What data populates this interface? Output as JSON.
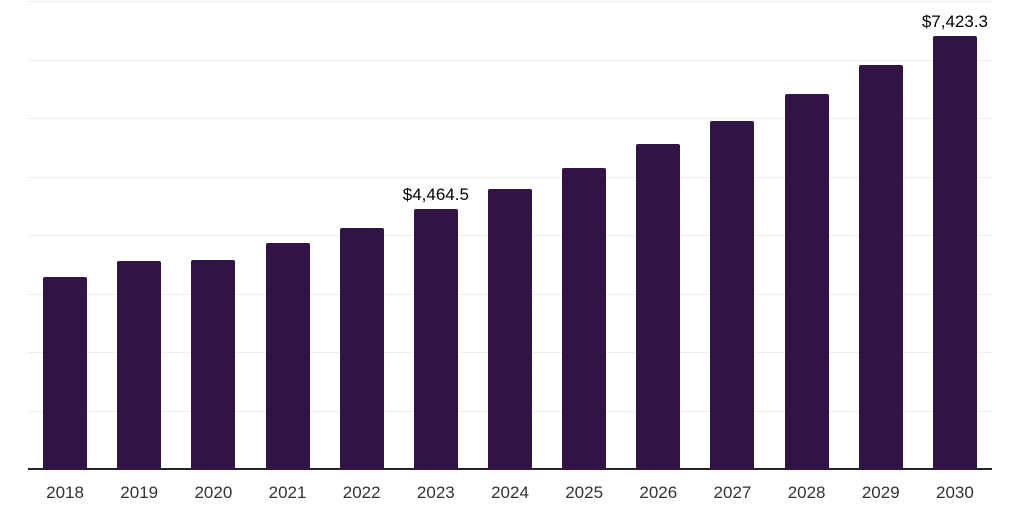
{
  "chart_data": {
    "type": "bar",
    "title": "",
    "xlabel": "",
    "ylabel": "",
    "categories": [
      "2018",
      "2019",
      "2020",
      "2021",
      "2022",
      "2023",
      "2024",
      "2025",
      "2026",
      "2027",
      "2028",
      "2029",
      "2030"
    ],
    "values": [
      3300,
      3570,
      3590,
      3885,
      4140,
      4464.5,
      4810,
      5165,
      5565,
      5965,
      6435,
      6920,
      7423.3
    ],
    "data_labels": [
      "",
      "",
      "",
      "",
      "",
      "$4,464.5",
      "",
      "",
      "",
      "",
      "",
      "",
      "$7,423.3"
    ],
    "ylim": [
      0,
      8000
    ],
    "gridline_step": 1000,
    "grid": "horizontal gridlines, no y-axis tick labels",
    "legend": "none",
    "colors": {
      "bar": "#321345",
      "axis_line": "#262626",
      "gridline": "#ededed",
      "data_label": "#000000",
      "tick_label": "#333333",
      "background": "#ffffff"
    }
  }
}
